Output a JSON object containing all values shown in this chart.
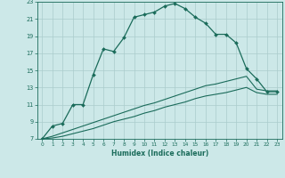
{
  "xlabel": "Humidex (Indice chaleur)",
  "background_color": "#cce8e8",
  "grid_color": "#aacccc",
  "line_color": "#1a6b5a",
  "xlim": [
    -0.5,
    23.5
  ],
  "ylim": [
    7,
    23
  ],
  "xticks": [
    0,
    1,
    2,
    3,
    4,
    5,
    6,
    7,
    8,
    9,
    10,
    11,
    12,
    13,
    14,
    15,
    16,
    17,
    18,
    19,
    20,
    21,
    22,
    23
  ],
  "yticks": [
    7,
    9,
    11,
    13,
    15,
    17,
    19,
    21,
    23
  ],
  "series1_x": [
    0,
    1,
    2,
    3,
    4,
    5,
    6,
    7,
    8,
    9,
    10,
    11,
    12,
    13,
    14,
    15,
    16,
    17,
    18,
    19,
    20,
    21,
    22,
    23
  ],
  "series1_y": [
    7.0,
    8.5,
    8.8,
    11.0,
    11.0,
    14.5,
    17.5,
    17.2,
    18.8,
    21.2,
    21.5,
    21.8,
    22.5,
    22.8,
    22.2,
    21.2,
    20.5,
    19.2,
    19.2,
    18.2,
    15.2,
    14.0,
    12.5,
    12.5
  ],
  "series2_x": [
    0,
    1,
    2,
    3,
    4,
    5,
    6,
    7,
    8,
    9,
    10,
    11,
    12,
    13,
    14,
    15,
    16,
    17,
    18,
    19,
    20,
    21,
    22,
    23
  ],
  "series2_y": [
    7.0,
    7.3,
    7.7,
    8.1,
    8.5,
    8.9,
    9.3,
    9.7,
    10.1,
    10.5,
    10.9,
    11.2,
    11.6,
    12.0,
    12.4,
    12.8,
    13.2,
    13.4,
    13.7,
    14.0,
    14.3,
    12.8,
    12.6,
    12.6
  ],
  "series3_x": [
    0,
    1,
    2,
    3,
    4,
    5,
    6,
    7,
    8,
    9,
    10,
    11,
    12,
    13,
    14,
    15,
    16,
    17,
    18,
    19,
    20,
    21,
    22,
    23
  ],
  "series3_y": [
    7.0,
    7.1,
    7.3,
    7.6,
    7.9,
    8.2,
    8.6,
    9.0,
    9.3,
    9.6,
    10.0,
    10.3,
    10.7,
    11.0,
    11.3,
    11.7,
    12.0,
    12.2,
    12.4,
    12.7,
    13.0,
    12.4,
    12.2,
    12.2
  ]
}
